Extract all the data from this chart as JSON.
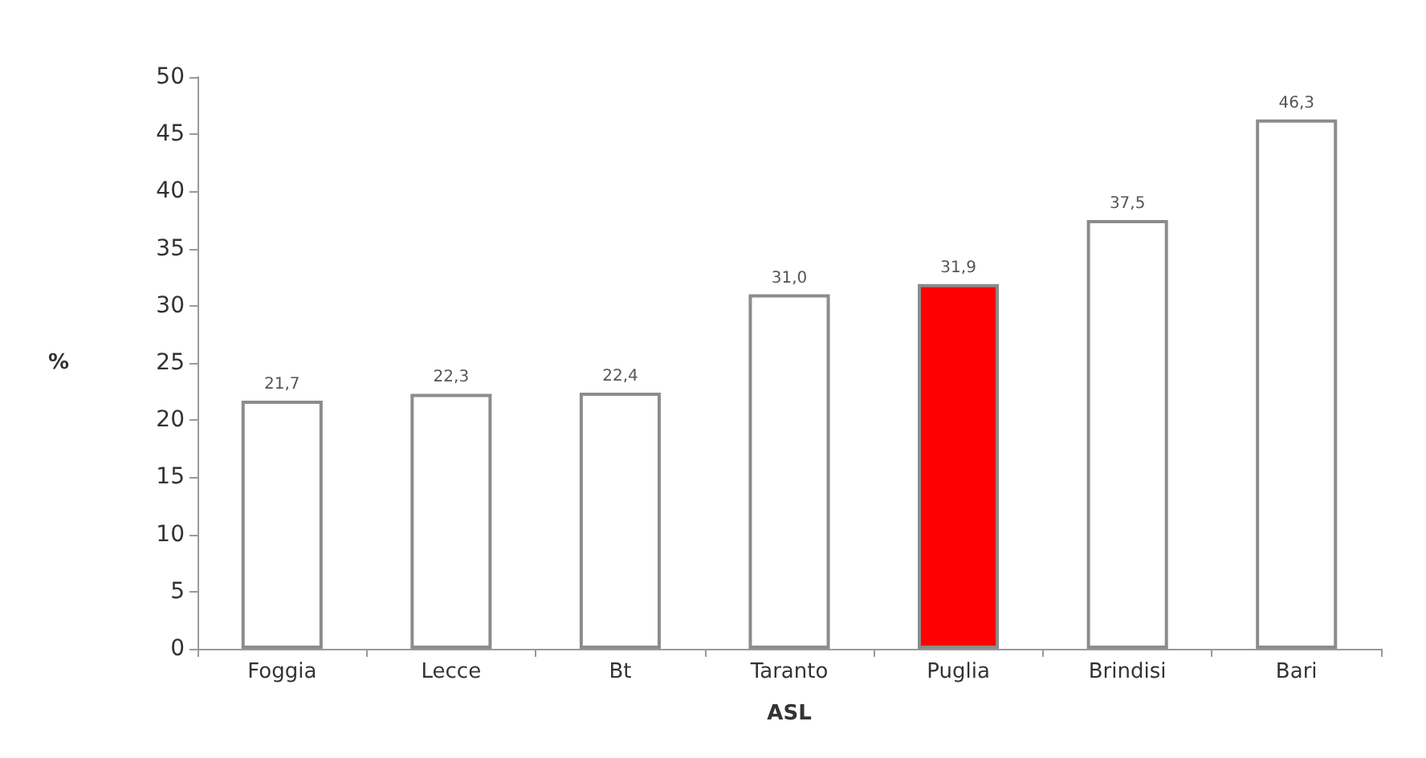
{
  "chart_data": {
    "type": "bar",
    "xlabel": "ASL",
    "ylabel": "%",
    "categories": [
      "Foggia",
      "Lecce",
      "Bt",
      "Taranto",
      "Puglia",
      "Brindisi",
      "Bari"
    ],
    "values": [
      21.7,
      22.3,
      22.4,
      31.0,
      31.9,
      37.5,
      46.3
    ],
    "colors": [
      "#ffffff",
      "#ffffff",
      "#ffffff",
      "#ffffff",
      "#ff0000",
      "#ffffff",
      "#ffffff"
    ],
    "value_labels": [
      "21,7",
      "22,3",
      "22,4",
      "31,0",
      "31,9",
      "37,5",
      "46,3"
    ],
    "ylim": [
      0,
      50
    ],
    "yticks": [
      0,
      5,
      10,
      15,
      20,
      25,
      30,
      35,
      40,
      45,
      50
    ],
    "grid": false
  }
}
